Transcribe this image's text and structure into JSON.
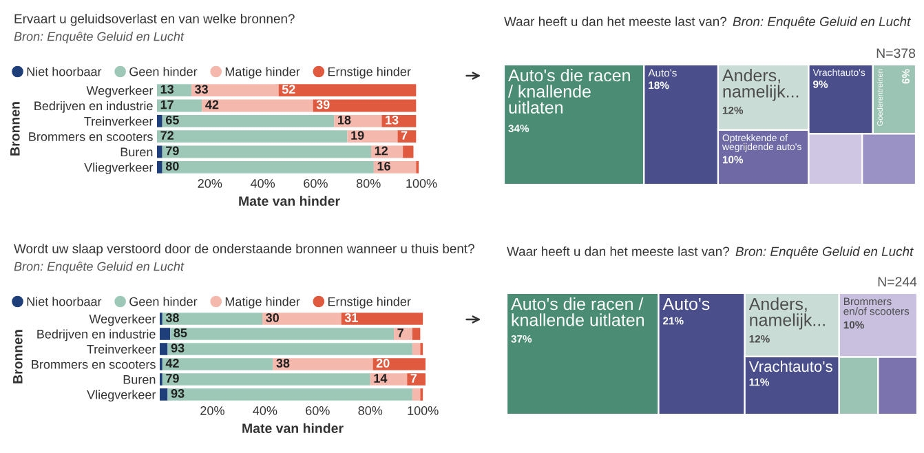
{
  "chart_data": [
    {
      "type": "bar",
      "orientation": "horizontal",
      "stacked": true,
      "title": "Ervaart u geluidsoverlast en van welke bronnen?",
      "annotations": [
        "Bron: Enquête Geluid en Lucht"
      ],
      "xlabel": "Mate van hinder",
      "ylabel": "Bronnen",
      "legend": "top left",
      "grid": false,
      "categories": [
        "Wegverkeer",
        "Bedrijven en industrie",
        "Treinverkeer",
        "Brommers en scooters",
        "Buren",
        "Vliegverkeer"
      ],
      "series": [
        {
          "name": "Niet hoorbaar",
          "color": "#1f3f7a",
          "values": [
            0,
            0,
            2,
            0,
            2,
            2
          ],
          "value_labels": [
            null,
            null,
            null,
            null,
            null,
            null
          ]
        },
        {
          "name": "Geen hinder",
          "color": "#9dc8b8",
          "values": [
            13,
            17,
            65,
            72,
            79,
            80
          ],
          "value_labels": [
            "13",
            "17",
            "65",
            "72",
            "79",
            "80"
          ]
        },
        {
          "name": "Matige hinder",
          "color": "#f4b8ad",
          "values": [
            33,
            42,
            18,
            19,
            12,
            16
          ],
          "value_labels": [
            "33",
            "42",
            "18",
            "19",
            "12",
            "16"
          ]
        },
        {
          "name": "Ernstige hinder",
          "color": "#e05a3f",
          "values": [
            52,
            39,
            13,
            7,
            4,
            1
          ],
          "value_labels": [
            "52",
            "39",
            "13",
            "7",
            null,
            null
          ]
        }
      ],
      "xlim": [
        0,
        100
      ],
      "xticks": [
        {
          "value": 20,
          "label": "20%"
        },
        {
          "value": 40,
          "label": "40%"
        },
        {
          "value": 60,
          "label": "60%"
        },
        {
          "value": 80,
          "label": "80%"
        },
        {
          "value": 100,
          "label": "100%"
        }
      ]
    },
    {
      "type": "other",
      "title": "Waar heeft u dan het meeste last van?",
      "annotations": [
        "Bron: Enquête Geluid en Lucht",
        "N=378"
      ],
      "categories": [
        "Auto's die racen / knallende uitlaten",
        "Auto's",
        "Anders, namelijk...",
        "Optrekkende of wegrijdende auto's",
        "Vrachtauto's",
        "Goederentreinen",
        null,
        null
      ],
      "values": [
        34,
        18,
        12,
        10,
        9,
        6,
        null,
        null
      ],
      "value_labels": [
        "34%",
        "18%",
        "12%",
        "10%",
        "9%",
        "6%",
        null,
        null
      ],
      "colors": [
        "#4a8c74",
        "#4a4f8c",
        "#c9ddd6",
        "#6f6aa6",
        "#4a4f8c",
        "#9cc4b4",
        "#cfc6e3",
        "#9a92c4"
      ]
    },
    {
      "type": "bar",
      "orientation": "horizontal",
      "stacked": true,
      "title": "Wordt uw slaap verstoord door de onderstaande bronnen wanneer u thuis bent?",
      "annotations": [
        "Bron: Enquête Geluid en Lucht"
      ],
      "xlabel": "Mate van hinder",
      "ylabel": "Bronnen",
      "legend": "top left",
      "grid": false,
      "categories": [
        "Wegverkeer",
        "Bedrijven en industrie",
        "Treinverkeer",
        "Brommers en scooters",
        "Buren",
        "Vliegverkeer"
      ],
      "series": [
        {
          "name": "Niet hoorbaar",
          "color": "#1f3f7a",
          "values": [
            1,
            4,
            3,
            1,
            1,
            3
          ],
          "value_labels": [
            null,
            null,
            null,
            null,
            null,
            null
          ]
        },
        {
          "name": "Geen hinder",
          "color": "#9dc8b8",
          "values": [
            38,
            85,
            93,
            42,
            79,
            93
          ],
          "value_labels": [
            "38",
            "85",
            "93",
            "42",
            "79",
            "93"
          ]
        },
        {
          "name": "Matige hinder",
          "color": "#f4b8ad",
          "values": [
            30,
            7,
            3,
            38,
            14,
            3
          ],
          "value_labels": [
            "30",
            "7",
            null,
            "38",
            "14",
            null
          ]
        },
        {
          "name": "Ernstige hinder",
          "color": "#e05a3f",
          "values": [
            31,
            3,
            1,
            20,
            7,
            1
          ],
          "value_labels": [
            "31",
            null,
            null,
            "20",
            "7",
            null
          ]
        }
      ],
      "xlim": [
        0,
        101
      ],
      "xticks": [
        {
          "value": 20,
          "label": "20%"
        },
        {
          "value": 40,
          "label": "40%"
        },
        {
          "value": 60,
          "label": "60%"
        },
        {
          "value": 80,
          "label": "80%"
        },
        {
          "value": 100,
          "label": "100%"
        }
      ]
    },
    {
      "type": "other",
      "title": "Waar heeft u dan het meeste last van?",
      "annotations": [
        "Bron: Enquête Geluid en Lucht",
        "N=244"
      ],
      "categories": [
        "Auto's die racen / knallende uitlaten",
        "Auto's",
        "Anders, namelijk...",
        "Vrachtauto's",
        "Brommers en/of scooters",
        null,
        null
      ],
      "values": [
        37,
        21,
        12,
        11,
        10,
        null,
        null
      ],
      "value_labels": [
        "37%",
        "21%",
        "12%",
        "11%",
        "10%",
        null,
        null
      ],
      "colors": [
        "#4a8c74",
        "#4a4f8c",
        "#c9ddd6",
        "#4a4f8c",
        "#c9c0e0",
        "#9cc4b4",
        "#7a73ae"
      ]
    }
  ]
}
